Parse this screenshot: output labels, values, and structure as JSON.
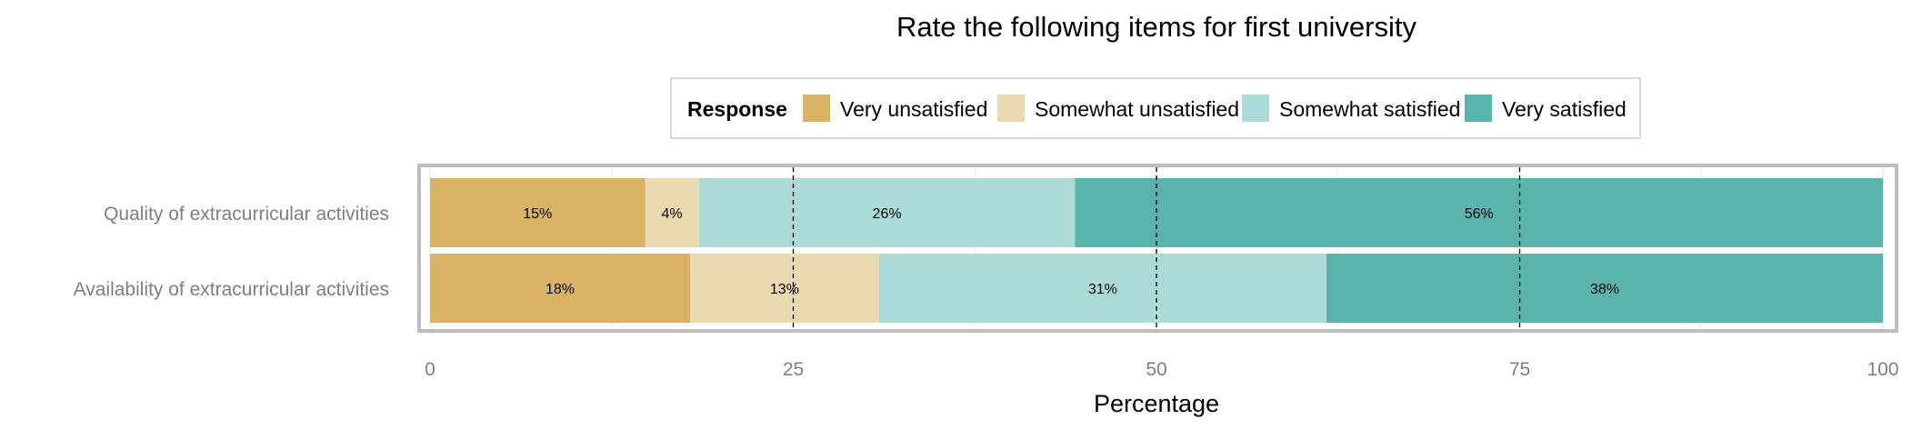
{
  "chart_data": {
    "type": "bar",
    "orientation": "horizontal",
    "stacked": true,
    "title": "Rate the following items for first university",
    "xlabel": "Percentage",
    "ylabel": "",
    "xlim": [
      0,
      100
    ],
    "xticks": [
      "0",
      "25",
      "50",
      "75",
      "100"
    ],
    "xtick_values": [
      0,
      25,
      50,
      75,
      100
    ],
    "reference_lines": [
      25,
      50,
      75
    ],
    "grid": true,
    "legend": {
      "title": "Response",
      "placement": "top",
      "entries": [
        "Very unsatisfied",
        "Somewhat unsatisfied",
        "Somewhat satisfied",
        "Very satisfied"
      ],
      "colors": [
        "#d8b365",
        "#eadab0",
        "#acdad5",
        "#5ab4ac"
      ]
    },
    "categories": [
      "Quality of extracurricular activities",
      "Availability of extracurricular activities"
    ],
    "series": [
      {
        "name": "Very unsatisfied",
        "color": "#d8b365",
        "values": [
          14.8,
          17.9
        ],
        "labels": [
          "15%",
          "18%"
        ]
      },
      {
        "name": "Somewhat unsatisfied",
        "color": "#eadab0",
        "values": [
          3.7,
          13.0
        ],
        "labels": [
          "4%",
          "13%"
        ]
      },
      {
        "name": "Somewhat satisfied",
        "color": "#acdad5",
        "values": [
          25.9,
          30.8
        ],
        "labels": [
          "26%",
          "31%"
        ]
      },
      {
        "name": "Very satisfied",
        "color": "#5ab4ac",
        "values": [
          55.6,
          38.3
        ],
        "labels": [
          "56%",
          "38%"
        ]
      }
    ]
  }
}
